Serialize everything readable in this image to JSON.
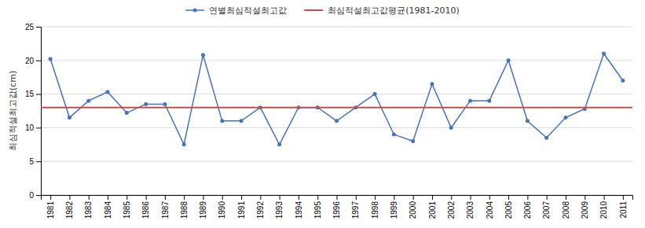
{
  "chart_data": {
    "type": "line",
    "x": [
      1981,
      1982,
      1983,
      1984,
      1985,
      1986,
      1987,
      1988,
      1989,
      1990,
      1991,
      1992,
      1993,
      1994,
      1995,
      1996,
      1997,
      1998,
      1999,
      2000,
      2001,
      2002,
      2003,
      2004,
      2005,
      2006,
      2007,
      2008,
      2009,
      2010,
      2011
    ],
    "series": [
      {
        "name": "연별최심적설최고값",
        "color": "#4472C4",
        "marker": "circle",
        "values": [
          20.2,
          11.5,
          14.0,
          15.3,
          12.2,
          13.5,
          13.5,
          7.5,
          20.8,
          11.0,
          11.0,
          13.0,
          7.5,
          13.0,
          13.0,
          11.0,
          13.0,
          15.0,
          9.0,
          8.0,
          16.5,
          10.0,
          14.0,
          14.0,
          20.0,
          11.0,
          8.5,
          11.5,
          12.8,
          21.0,
          17.0
        ]
      },
      {
        "name": "최심적설최고값평균(1981-2010)",
        "color": "#C0504D",
        "type": "hline",
        "value": 13.0
      }
    ],
    "y_label": "최심적설최고값(cm)",
    "xlim": [
      1980.5,
      2011.5
    ],
    "xticks": [
      1981,
      1982,
      1983,
      1984,
      1985,
      1986,
      1987,
      1988,
      1989,
      1990,
      1991,
      1992,
      1993,
      1994,
      1995,
      1996,
      1997,
      1998,
      1999,
      2000,
      2001,
      2002,
      2003,
      2004,
      2005,
      2006,
      2007,
      2008,
      2009,
      2010,
      2011
    ],
    "ylim": [
      0,
      25
    ],
    "yticks": [
      0,
      5,
      10,
      15,
      20,
      25
    ],
    "grid": "y",
    "legend": "top"
  }
}
